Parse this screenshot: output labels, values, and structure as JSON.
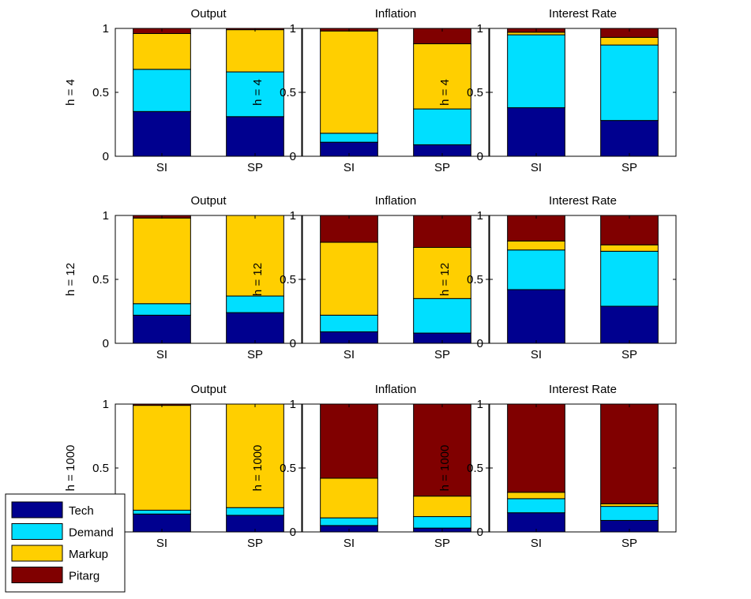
{
  "colors": {
    "Tech": "#00008f",
    "Demand": "#00dfff",
    "Markup": "#ffcf00",
    "Pitarg": "#800000",
    "axis": "#000000",
    "background": "#ffffff"
  },
  "legend": {
    "placement": "bottom-left",
    "entries": [
      "Tech",
      "Demand",
      "Markup",
      "Pitarg"
    ]
  },
  "chart_data": [
    {
      "type": "bar",
      "stacked": true,
      "title": "Output",
      "ylabel": "h = 4",
      "ylim": [
        0,
        1
      ],
      "yticks": [
        "0",
        "0.5",
        "1"
      ],
      "categories": [
        "SI",
        "SP"
      ],
      "series": [
        {
          "name": "Tech",
          "values": [
            0.35,
            0.31
          ]
        },
        {
          "name": "Demand",
          "values": [
            0.33,
            0.35
          ]
        },
        {
          "name": "Markup",
          "values": [
            0.28,
            0.33
          ]
        },
        {
          "name": "Pitarg",
          "values": [
            0.04,
            0.01
          ]
        }
      ]
    },
    {
      "type": "bar",
      "stacked": true,
      "title": "Inflation",
      "ylabel": "h = 4",
      "ylim": [
        0,
        1
      ],
      "yticks": [
        "0",
        "0.5",
        "1"
      ],
      "categories": [
        "SI",
        "SP"
      ],
      "series": [
        {
          "name": "Tech",
          "values": [
            0.11,
            0.09
          ]
        },
        {
          "name": "Demand",
          "values": [
            0.07,
            0.28
          ]
        },
        {
          "name": "Markup",
          "values": [
            0.8,
            0.51
          ]
        },
        {
          "name": "Pitarg",
          "values": [
            0.02,
            0.12
          ]
        }
      ]
    },
    {
      "type": "bar",
      "stacked": true,
      "title": "Interest Rate",
      "ylabel": "h = 4",
      "ylim": [
        0,
        1
      ],
      "yticks": [
        "0",
        "0.5",
        "1"
      ],
      "categories": [
        "SI",
        "SP"
      ],
      "series": [
        {
          "name": "Tech",
          "values": [
            0.38,
            0.28
          ]
        },
        {
          "name": "Demand",
          "values": [
            0.57,
            0.59
          ]
        },
        {
          "name": "Markup",
          "values": [
            0.02,
            0.06
          ]
        },
        {
          "name": "Pitarg",
          "values": [
            0.03,
            0.07
          ]
        }
      ]
    },
    {
      "type": "bar",
      "stacked": true,
      "title": "Output",
      "ylabel": "h = 12",
      "ylim": [
        0,
        1
      ],
      "yticks": [
        "0",
        "0.5",
        "1"
      ],
      "categories": [
        "SI",
        "SP"
      ],
      "series": [
        {
          "name": "Tech",
          "values": [
            0.22,
            0.24
          ]
        },
        {
          "name": "Demand",
          "values": [
            0.09,
            0.13
          ]
        },
        {
          "name": "Markup",
          "values": [
            0.67,
            0.63
          ]
        },
        {
          "name": "Pitarg",
          "values": [
            0.02,
            0.0
          ]
        }
      ]
    },
    {
      "type": "bar",
      "stacked": true,
      "title": "Inflation",
      "ylabel": "h = 12",
      "ylim": [
        0,
        1
      ],
      "yticks": [
        "0",
        "0.5",
        "1"
      ],
      "categories": [
        "SI",
        "SP"
      ],
      "series": [
        {
          "name": "Tech",
          "values": [
            0.09,
            0.08
          ]
        },
        {
          "name": "Demand",
          "values": [
            0.13,
            0.27
          ]
        },
        {
          "name": "Markup",
          "values": [
            0.57,
            0.4
          ]
        },
        {
          "name": "Pitarg",
          "values": [
            0.21,
            0.25
          ]
        }
      ]
    },
    {
      "type": "bar",
      "stacked": true,
      "title": "Interest Rate",
      "ylabel": "h = 12",
      "ylim": [
        0,
        1
      ],
      "yticks": [
        "0",
        "0.5",
        "1"
      ],
      "categories": [
        "SI",
        "SP"
      ],
      "series": [
        {
          "name": "Tech",
          "values": [
            0.42,
            0.29
          ]
        },
        {
          "name": "Demand",
          "values": [
            0.31,
            0.43
          ]
        },
        {
          "name": "Markup",
          "values": [
            0.07,
            0.05
          ]
        },
        {
          "name": "Pitarg",
          "values": [
            0.2,
            0.23
          ]
        }
      ]
    },
    {
      "type": "bar",
      "stacked": true,
      "title": "Output",
      "ylabel": "h = 1000",
      "ylim": [
        0,
        1
      ],
      "yticks": [
        "0",
        "0.5",
        "1"
      ],
      "categories": [
        "SI",
        "SP"
      ],
      "series": [
        {
          "name": "Tech",
          "values": [
            0.14,
            0.13
          ]
        },
        {
          "name": "Demand",
          "values": [
            0.03,
            0.06
          ]
        },
        {
          "name": "Markup",
          "values": [
            0.82,
            0.81
          ]
        },
        {
          "name": "Pitarg",
          "values": [
            0.01,
            0.0
          ]
        }
      ]
    },
    {
      "type": "bar",
      "stacked": true,
      "title": "Inflation",
      "ylabel": "h = 1000",
      "ylim": [
        0,
        1
      ],
      "yticks": [
        "0",
        "0.5",
        "1"
      ],
      "categories": [
        "SI",
        "SP"
      ],
      "series": [
        {
          "name": "Tech",
          "values": [
            0.05,
            0.03
          ]
        },
        {
          "name": "Demand",
          "values": [
            0.06,
            0.09
          ]
        },
        {
          "name": "Markup",
          "values": [
            0.31,
            0.16
          ]
        },
        {
          "name": "Pitarg",
          "values": [
            0.58,
            0.72
          ]
        }
      ]
    },
    {
      "type": "bar",
      "stacked": true,
      "title": "Interest Rate",
      "ylabel": "h = 1000",
      "ylim": [
        0,
        1
      ],
      "yticks": [
        "0",
        "0.5",
        "1"
      ],
      "categories": [
        "SI",
        "SP"
      ],
      "series": [
        {
          "name": "Tech",
          "values": [
            0.15,
            0.09
          ]
        },
        {
          "name": "Demand",
          "values": [
            0.11,
            0.11
          ]
        },
        {
          "name": "Markup",
          "values": [
            0.05,
            0.02
          ]
        },
        {
          "name": "Pitarg",
          "values": [
            0.69,
            0.78
          ]
        }
      ]
    }
  ]
}
